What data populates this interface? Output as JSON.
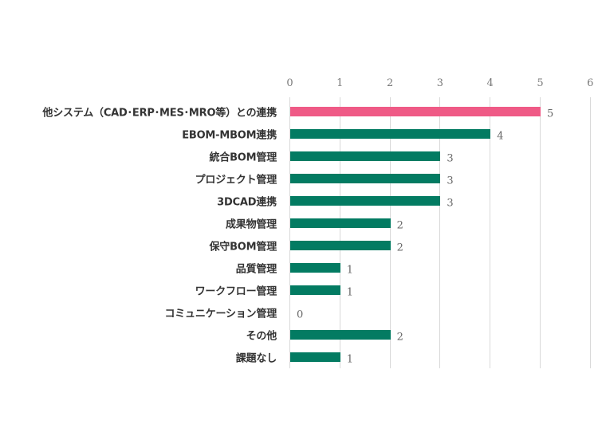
{
  "chart_data": {
    "type": "bar",
    "orientation": "horizontal",
    "title": "",
    "xlabel": "",
    "ylabel": "",
    "xlim": [
      0,
      6
    ],
    "x_ticks": [
      "0",
      "1",
      "2",
      "3",
      "4",
      "5",
      "6"
    ],
    "x_axis_position": "top",
    "grid": true,
    "legend": null,
    "categories": [
      "他システム（CAD･ERP･MES･MRO等）との連携",
      "EBOM-MBOM連携",
      "統合BOM管理",
      "プロジェクト管理",
      "3DCAD連携",
      "成果物管理",
      "保守BOM管理",
      "品質管理",
      "ワークフロー管理",
      "コミュニケーション管理",
      "その他",
      "課題なし"
    ],
    "values": [
      5,
      4,
      3,
      3,
      3,
      2,
      2,
      1,
      1,
      0,
      2,
      1
    ],
    "data_labels": [
      "5",
      "4",
      "3",
      "3",
      "3",
      "2",
      "2",
      "1",
      "1",
      "0",
      "2",
      "1"
    ],
    "colors": {
      "highlight": "#EF5A86",
      "default": "#037B62",
      "grid": "#D9D9D9",
      "tick_text": "#7A7A7A",
      "category_text": "#333333"
    },
    "highlight_index": 0
  }
}
